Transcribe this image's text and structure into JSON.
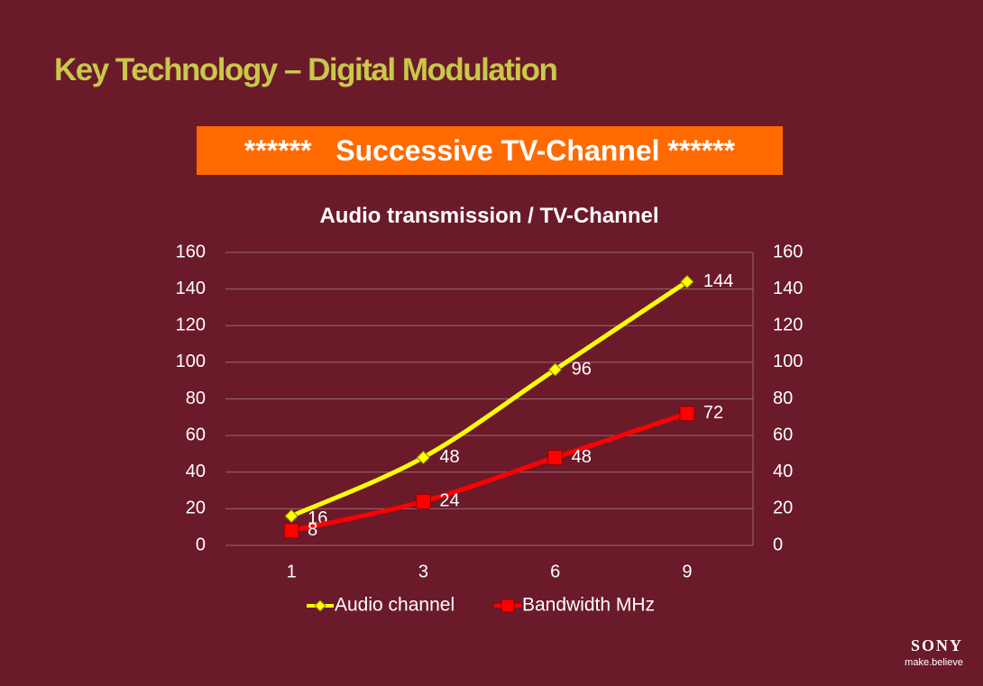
{
  "slide": {
    "title": "Key Technology – Digital Modulation",
    "banner": "******   Successive TV-Channel ******"
  },
  "brand": {
    "logo": "SONY",
    "slogan": "make.believe"
  },
  "colors": {
    "background": "#6b1a2a",
    "title": "#c8c84a",
    "banner": "#ff6a00",
    "audio": "#ffff00",
    "bandwidth": "#ff0000"
  },
  "chart_data": {
    "type": "line",
    "title": "Audio transmission / TV-Channel",
    "xlabel": "",
    "ylabel": "",
    "categories": [
      "1",
      "3",
      "6",
      "9"
    ],
    "ylim": [
      0,
      160
    ],
    "yticks": [
      0,
      20,
      40,
      60,
      80,
      100,
      120,
      140,
      160
    ],
    "secondary_yticks": [
      0,
      20,
      40,
      60,
      80,
      100,
      120,
      140,
      160
    ],
    "grid": true,
    "legend_position": "bottom",
    "series": [
      {
        "name": "Audio channel",
        "values": [
          16,
          48,
          96,
          144
        ],
        "color": "#ffff00",
        "marker": "diamond"
      },
      {
        "name": "Bandwidth MHz",
        "values": [
          8,
          24,
          48,
          72
        ],
        "color": "#ff0000",
        "marker": "square"
      }
    ]
  }
}
